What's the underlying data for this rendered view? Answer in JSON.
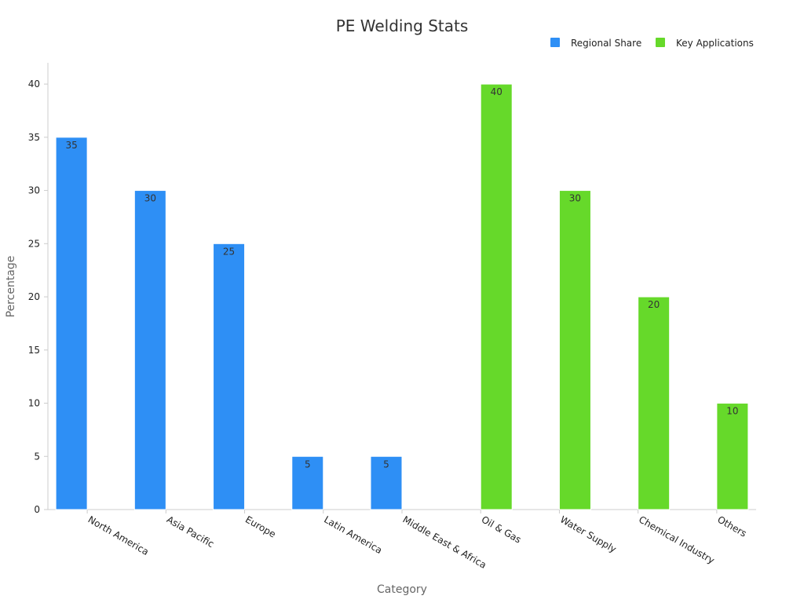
{
  "chart_data": {
    "type": "bar",
    "title": "PE Welding Stats",
    "xlabel": "Category",
    "ylabel": "Percentage",
    "ylim": [
      0,
      42
    ],
    "y_ticks": [
      0,
      5,
      10,
      15,
      20,
      25,
      30,
      35,
      40
    ],
    "grid": false,
    "legend_position": "top-right",
    "categories": [
      "North America",
      "Asia Pacific",
      "Europe",
      "Latin America",
      "Middle East & Africa",
      "Oil & Gas",
      "Water Supply",
      "Chemical Industry",
      "Others"
    ],
    "series": [
      {
        "name": "Regional Share",
        "color": "#2E8FF5",
        "values": [
          35,
          30,
          25,
          5,
          5,
          null,
          null,
          null,
          null
        ]
      },
      {
        "name": "Key Applications",
        "color": "#66D92A",
        "values": [
          null,
          null,
          null,
          null,
          null,
          40,
          30,
          20,
          10
        ]
      }
    ]
  },
  "colors": {
    "axis": "#cccccc",
    "text": "#222222",
    "title": "#333333",
    "muted": "#666666",
    "bar_label": "#333333"
  }
}
